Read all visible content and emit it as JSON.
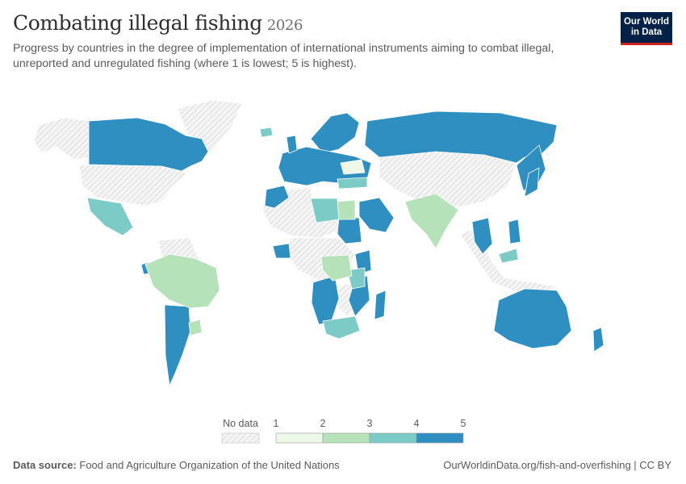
{
  "header": {
    "title": "Combating illegal fishing",
    "year": "2026",
    "subtitle": "Progress by countries in the degree of implementation of international instruments aiming to combat illegal, unreported and unregulated fishing (where 1 is lowest; 5 is highest)."
  },
  "logo": {
    "line1": "Our World",
    "line2": "in Data"
  },
  "legend": {
    "no_data_label": "No data",
    "ticks": [
      "1",
      "2",
      "3",
      "4",
      "5"
    ],
    "colors": [
      "#edf8e9",
      "#b5e2b8",
      "#7ccbc6",
      "#2f8fc1"
    ],
    "no_data_pattern": "hatched-grey"
  },
  "colors": {
    "level_1_2": "#edf8e9",
    "level_2_3": "#b5e2b8",
    "level_3_4": "#7ccbc6",
    "level_4_5": "#2f8fc1",
    "no_data": "#f2f2f2",
    "border": "#ffffff"
  },
  "footer": {
    "source_label": "Data source:",
    "source_text": "Food and Agriculture Organization of the United Nations",
    "url": "OurWorldinData.org/fish-and-overfishing | CC BY"
  }
}
